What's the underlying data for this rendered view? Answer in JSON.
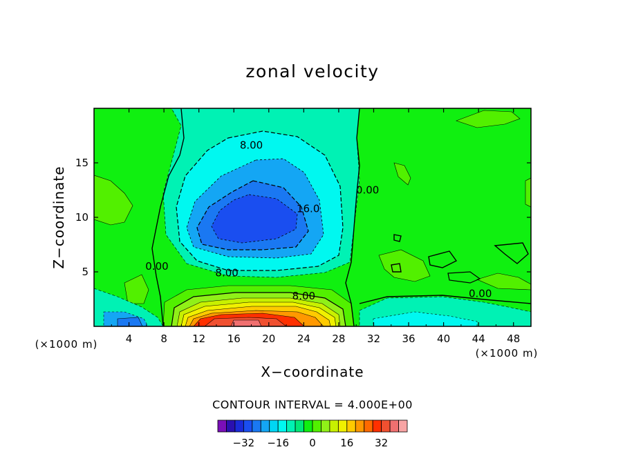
{
  "chart_data": {
    "type": "contour",
    "title": "zonal velocity",
    "xlabel": "X−coordinate",
    "ylabel": "Z−coordinate",
    "x_unit": "(×1000 m)",
    "x_unit_right": "(×1000 m)",
    "xlim": [
      0,
      50
    ],
    "ylim": [
      0,
      20
    ],
    "x_ticks": [
      4,
      8,
      12,
      16,
      20,
      24,
      28,
      32,
      36,
      40,
      44,
      48
    ],
    "x_tick_labels": [
      "4",
      "8",
      "12",
      "16",
      "20",
      "24",
      "28",
      "32",
      "36",
      "40",
      "44",
      "48"
    ],
    "y_ticks": [
      5,
      10,
      15
    ],
    "y_tick_labels": [
      "5",
      "10",
      "15"
    ],
    "contour_interval_text": "CONTOUR INTERVAL = 4.000E+00",
    "contour_interval": 4.0,
    "contour_labels": [
      {
        "text": "8.00",
        "x": 18.0,
        "z": 16.6
      },
      {
        "text": "16.0",
        "x": 24.5,
        "z": 10.8
      },
      {
        "text": "8.00",
        "x": 15.2,
        "z": 4.9
      },
      {
        "text": "0.00",
        "x": 7.2,
        "z": 5.5
      },
      {
        "text": "0.00",
        "x": 31.3,
        "z": 12.5
      },
      {
        "text": "8.00",
        "x": 24.0,
        "z": 2.8
      },
      {
        "text": "0.00",
        "x": 44.2,
        "z": 3.0
      }
    ],
    "colorbar": {
      "tick_values": [
        -32,
        -16,
        0,
        16,
        32
      ],
      "tick_labels": [
        "−32",
        "−16",
        "0",
        "16",
        "32"
      ],
      "colors": [
        "#7a0fb8",
        "#2a10b0",
        "#1a2ad8",
        "#1a4ef0",
        "#1a78f2",
        "#14a6f4",
        "#00d6f4",
        "#00f8f0",
        "#00f2b4",
        "#00e878",
        "#10f010",
        "#52f000",
        "#90f018",
        "#c8f000",
        "#f0f000",
        "#ffca00",
        "#ff9800",
        "#ff6a00",
        "#ff3000",
        "#f05030",
        "#f07070",
        "#f8a4a4"
      ]
    }
  }
}
